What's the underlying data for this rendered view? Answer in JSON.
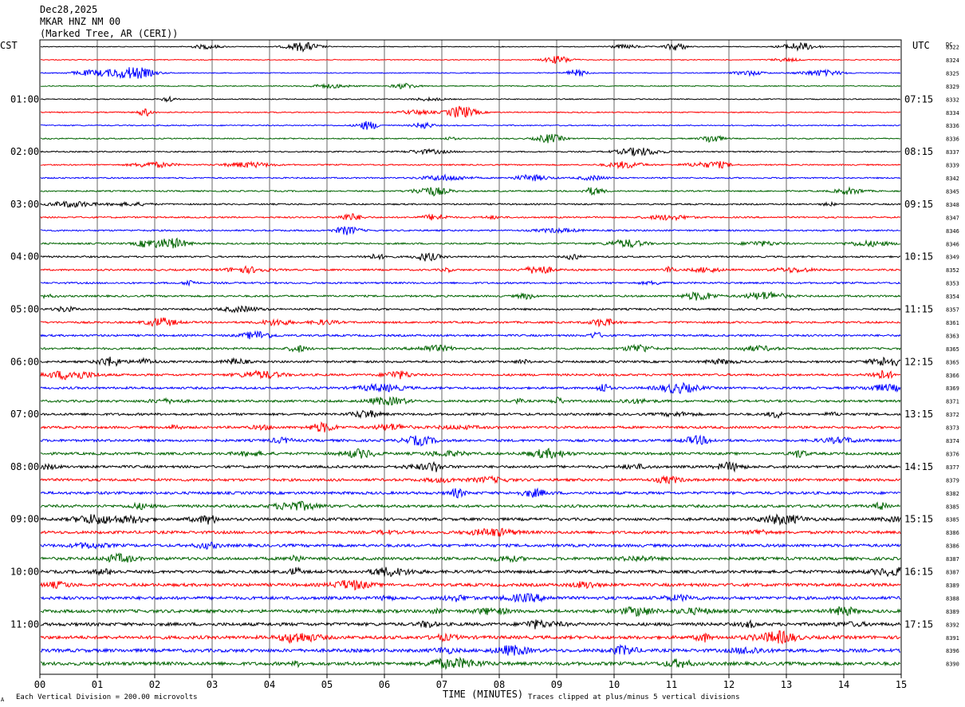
{
  "header": {
    "date": "Dec28,2025",
    "station": "MKAR HNZ NM 00",
    "location": "(Marked Tree, AR (CERI))"
  },
  "left_zone": "CST",
  "right_zone": "UTC",
  "dc_label": "DC",
  "footer": {
    "scale_note": "Each Vertical Division =  200.00 microvolts",
    "clip_note": "Traces clipped at plus/minus 5 vertical divisions",
    "mark": "A"
  },
  "trace_colors": [
    "#000000",
    "#ff0000",
    "#0000ff",
    "#006400"
  ],
  "chart_data": {
    "type": "line",
    "title": "",
    "xlabel": "TIME (MINUTES)",
    "ylabel": "",
    "xlim": [
      0,
      15
    ],
    "x_ticks": [
      "00",
      "01",
      "02",
      "03",
      "04",
      "05",
      "06",
      "07",
      "08",
      "09",
      "10",
      "11",
      "12",
      "13",
      "14",
      "15"
    ],
    "grid": true,
    "rows": 48,
    "left_hour_labels": [
      "01:00",
      "02:00",
      "03:00",
      "04:00",
      "05:00",
      "06:00",
      "07:00",
      "08:00",
      "09:00",
      "10:00",
      "11:00"
    ],
    "right_hour_labels": [
      "07:15",
      "08:15",
      "09:15",
      "10:15",
      "11:15",
      "12:15",
      "13:15",
      "14:15",
      "15:15",
      "16:15",
      "17:15"
    ],
    "dc_offsets": [
      "8322",
      "8324",
      "8325",
      "8329",
      "8332",
      "8334",
      "8336",
      "8336",
      "8337",
      "8339",
      "8342",
      "8345",
      "8348",
      "8347",
      "8346",
      "8346",
      "8349",
      "8352",
      "8353",
      "8354",
      "8357",
      "8361",
      "8363",
      "8365",
      "8365",
      "8366",
      "8369",
      "8371",
      "8372",
      "8373",
      "8374",
      "8376",
      "8377",
      "8379",
      "8382",
      "8385",
      "8385",
      "8386",
      "8386",
      "8387",
      "8387",
      "8389",
      "8388",
      "8389",
      "8392",
      "8391",
      "8396",
      "8390"
    ]
  }
}
